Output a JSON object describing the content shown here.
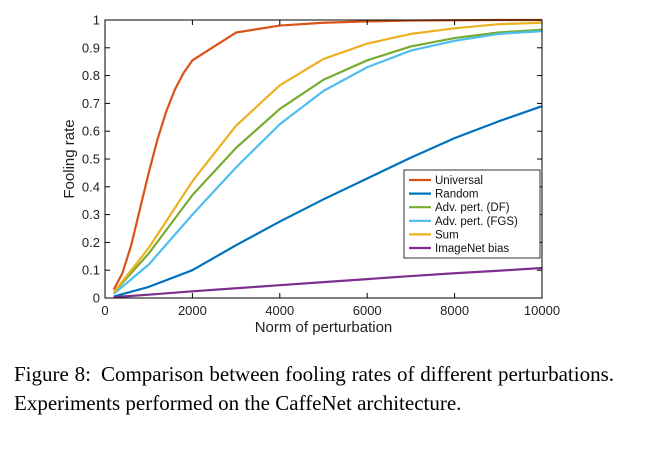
{
  "chart_data": {
    "type": "line",
    "title": "",
    "xlabel": "Norm of perturbation",
    "ylabel": "Fooling rate",
    "xlim": [
      0,
      10000
    ],
    "ylim": [
      0,
      1
    ],
    "xticks": [
      0,
      2000,
      4000,
      6000,
      8000,
      10000
    ],
    "yticks": [
      0,
      0.1,
      0.2,
      0.3,
      0.4,
      0.5,
      0.6,
      0.7,
      0.8,
      0.9,
      1
    ],
    "ytick_labels": [
      "0",
      "0.1",
      "0.2",
      "0.3",
      "0.4",
      "0.5",
      "0.6",
      "0.7",
      "0.8",
      "0.9",
      "1"
    ],
    "grid": false,
    "legend_position": "lower-right",
    "series": [
      {
        "name": "Universal",
        "color": "#d95319",
        "x": [
          200,
          400,
          600,
          800,
          1000,
          1200,
          1400,
          1600,
          1800,
          2000,
          3000,
          4000,
          5000,
          6000,
          7000,
          8000,
          9000,
          10000
        ],
        "y": [
          0.03,
          0.09,
          0.19,
          0.32,
          0.45,
          0.57,
          0.67,
          0.75,
          0.81,
          0.855,
          0.955,
          0.98,
          0.99,
          0.995,
          0.998,
          0.999,
          1.0,
          1.0
        ]
      },
      {
        "name": "Random",
        "color": "#0072bd",
        "x": [
          200,
          1000,
          2000,
          3000,
          4000,
          5000,
          6000,
          7000,
          8000,
          9000,
          10000
        ],
        "y": [
          0.005,
          0.04,
          0.1,
          0.19,
          0.275,
          0.355,
          0.43,
          0.505,
          0.575,
          0.635,
          0.69
        ]
      },
      {
        "name": "Adv. pert. (DF)",
        "color": "#77ac30",
        "x": [
          200,
          1000,
          2000,
          3000,
          4000,
          5000,
          6000,
          7000,
          8000,
          9000,
          10000
        ],
        "y": [
          0.02,
          0.16,
          0.37,
          0.54,
          0.68,
          0.785,
          0.855,
          0.905,
          0.935,
          0.955,
          0.965
        ]
      },
      {
        "name": "Adv. pert. (FGS)",
        "color": "#4dbeee",
        "x": [
          200,
          1000,
          2000,
          3000,
          4000,
          5000,
          6000,
          7000,
          8000,
          9000,
          10000
        ],
        "y": [
          0.015,
          0.12,
          0.3,
          0.47,
          0.625,
          0.745,
          0.83,
          0.89,
          0.925,
          0.95,
          0.96
        ]
      },
      {
        "name": "Sum",
        "color": "#edb120",
        "x": [
          200,
          1000,
          2000,
          3000,
          4000,
          5000,
          6000,
          7000,
          8000,
          9000,
          10000
        ],
        "y": [
          0.02,
          0.18,
          0.42,
          0.62,
          0.765,
          0.86,
          0.915,
          0.95,
          0.97,
          0.985,
          0.99
        ]
      },
      {
        "name": "ImageNet bias",
        "color": "#7e2f8e",
        "x": [
          200,
          1000,
          2000,
          3000,
          4000,
          5000,
          6000,
          7000,
          8000,
          9000,
          10000
        ],
        "y": [
          0.003,
          0.012,
          0.024,
          0.035,
          0.046,
          0.057,
          0.068,
          0.079,
          0.089,
          0.098,
          0.108
        ]
      }
    ]
  },
  "caption": {
    "label": "Figure 8:",
    "text": "Comparison between fooling rates of different perturbations. Experiments performed on the CaffeNet architecture."
  }
}
